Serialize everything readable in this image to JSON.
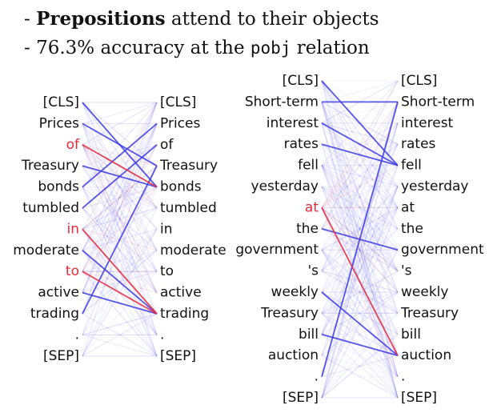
{
  "bullets": {
    "line1_prefix": "- ",
    "line1_bold": "Prepositions",
    "line1_rest": " attend to their objects",
    "line2_prefix": "- 76.3% accuracy at the ",
    "line2_code": "pobj",
    "line2_suffix": " relation"
  },
  "colors": {
    "attention": "#3a3ae6",
    "highlight": "#e62a3a",
    "text": "#111111"
  },
  "left_panel": {
    "tokens": [
      "[CLS]",
      "Prices",
      "of",
      "Treasury",
      "bonds",
      "tumbled",
      "in",
      "moderate",
      "to",
      "active",
      "trading",
      ".",
      "[SEP]"
    ],
    "highlighted": [
      2,
      6,
      8
    ],
    "strong_links": [
      {
        "from": 0,
        "to": 4
      },
      {
        "from": 1,
        "to": 3
      },
      {
        "from": 3,
        "to": 4
      },
      {
        "from": 10,
        "to": 3
      },
      {
        "from": 9,
        "to": 10
      },
      {
        "from": 7,
        "to": 10
      },
      {
        "from": 4,
        "to": 1
      },
      {
        "from": 5,
        "to": 2
      }
    ],
    "red_links": [
      {
        "from": 2,
        "to": 4
      },
      {
        "from": 6,
        "to": 10
      },
      {
        "from": 8,
        "to": 10
      }
    ]
  },
  "right_panel": {
    "tokens": [
      "[CLS]",
      "Short-term",
      "interest",
      "rates",
      "fell",
      "yesterday",
      "at",
      "the",
      "government",
      "'s",
      "weekly",
      "Treasury",
      "bill",
      "auction",
      ".",
      "[SEP]"
    ],
    "highlighted": [
      6
    ],
    "strong_links": [
      {
        "from": 0,
        "to": 4
      },
      {
        "from": 1,
        "to": 1
      },
      {
        "from": 14,
        "to": 1
      },
      {
        "from": 2,
        "to": 4
      },
      {
        "from": 3,
        "to": 4
      },
      {
        "from": 7,
        "to": 8
      },
      {
        "from": 10,
        "to": 13
      },
      {
        "from": 12,
        "to": 13
      }
    ],
    "red_links": [
      {
        "from": 6,
        "to": 13
      }
    ]
  }
}
